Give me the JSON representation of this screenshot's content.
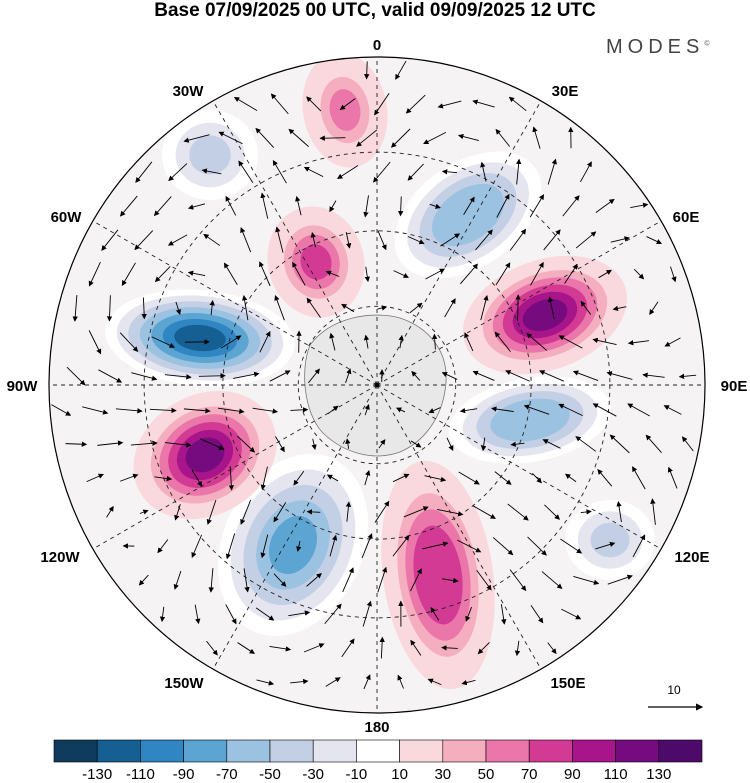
{
  "title": "Base 07/09/2025 00 UTC, valid 09/09/2025 12 UTC",
  "brand": "MODES",
  "brand_mark": "©",
  "map": {
    "projection": "south polar stereographic",
    "longitude_labels": {
      "top": "0",
      "bottom": "180",
      "left": "90W",
      "right": "90E",
      "top_left": "30W",
      "top_right": "30E",
      "upper_left": "60W",
      "upper_right": "60E",
      "lower_left": "120W",
      "lower_right": "120E",
      "bottom_left": "150W",
      "bottom_right": "150E"
    },
    "anomalies": [
      {
        "name": "positive-anomaly-0",
        "value": 60
      },
      {
        "name": "negative-anomaly-30w",
        "value": -40
      },
      {
        "name": "positive-anomaly-15w",
        "value": 80
      },
      {
        "name": "negative-anomaly-40e",
        "value": -70
      },
      {
        "name": "positive-anomaly-70e",
        "value": 115
      },
      {
        "name": "negative-anomaly-100e",
        "value": -70
      },
      {
        "name": "negative-anomaly-120e",
        "value": -40
      },
      {
        "name": "positive-anomaly-165e",
        "value": 85
      },
      {
        "name": "negative-anomaly-145w",
        "value": -75
      },
      {
        "name": "positive-anomaly-110w",
        "value": 115
      },
      {
        "name": "negative-anomaly-80w",
        "value": -120
      }
    ]
  },
  "vector_reference": {
    "label": "10"
  },
  "colorbar": {
    "labels": [
      "-130",
      "-110",
      "-90",
      "-70",
      "-50",
      "-30",
      "-10",
      "10",
      "30",
      "50",
      "70",
      "90",
      "110",
      "130"
    ],
    "colors": [
      "#0f3c5c",
      "#155f93",
      "#2f86c2",
      "#5ca5d3",
      "#9cc2e2",
      "#c3cfe4",
      "#e5e5f0",
      "#ffffff",
      "#f9d9de",
      "#f4aebf",
      "#eb76aa",
      "#d23a94",
      "#a8148a",
      "#760b80",
      "#4d0a6a"
    ]
  }
}
